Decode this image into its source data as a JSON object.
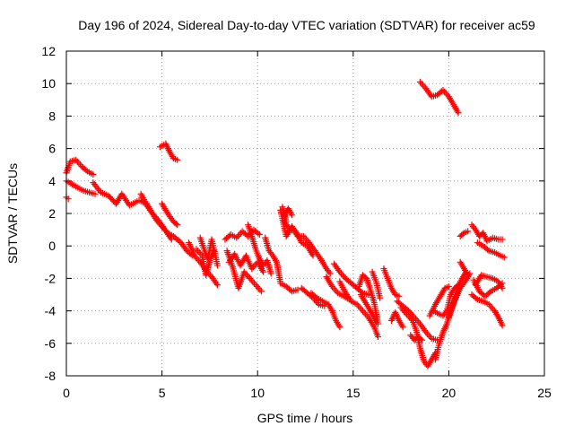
{
  "chart_data": {
    "type": "scatter",
    "title": "Day 196 of 2024, Sidereal Day-to-day VTEC variation (SDTVAR) for receiver ac59",
    "xlabel": "GPS time / hours",
    "ylabel": "SDTVAR / TECUs",
    "xlim": [
      0,
      25
    ],
    "ylim": [
      -8,
      12
    ],
    "xticks": [
      0,
      5,
      10,
      15,
      20,
      25
    ],
    "yticks": [
      -8,
      -6,
      -4,
      -2,
      0,
      2,
      4,
      6,
      8,
      10,
      12
    ],
    "grid": true,
    "marker": "+",
    "series": [
      {
        "name": "SDTVAR",
        "color": "#ff0000",
        "segments": [
          [
            [
              0.0,
              4.5
            ],
            [
              0.2,
              5.2
            ],
            [
              0.5,
              5.3
            ],
            [
              0.8,
              4.9
            ],
            [
              1.1,
              4.6
            ],
            [
              1.4,
              4.4
            ]
          ],
          [
            [
              0.0,
              4.0
            ],
            [
              0.3,
              3.8
            ],
            [
              0.6,
              3.6
            ],
            [
              0.9,
              3.4
            ],
            [
              1.2,
              3.3
            ],
            [
              1.5,
              3.2
            ]
          ],
          [
            [
              0.0,
              3.0
            ],
            [
              0.1,
              2.9
            ]
          ],
          [
            [
              1.4,
              3.9
            ],
            [
              1.8,
              3.3
            ],
            [
              2.2,
              3.1
            ],
            [
              2.6,
              2.6
            ],
            [
              2.9,
              3.2
            ],
            [
              3.3,
              2.5
            ],
            [
              3.8,
              2.8
            ],
            [
              4.2,
              2.6
            ],
            [
              4.4,
              2.2
            ],
            [
              4.7,
              1.6
            ],
            [
              5.0,
              1.2
            ],
            [
              5.3,
              0.8
            ],
            [
              5.6,
              0.6
            ],
            [
              6.0,
              0.2
            ],
            [
              6.3,
              -0.3
            ],
            [
              6.6,
              -0.6
            ]
          ],
          [
            [
              3.9,
              3.2
            ],
            [
              4.2,
              2.5
            ],
            [
              4.5,
              2.0
            ],
            [
              4.8,
              1.6
            ],
            [
              5.1,
              1.1
            ],
            [
              5.5,
              0.4
            ]
          ],
          [
            [
              5.0,
              2.6
            ],
            [
              5.3,
              2.0
            ],
            [
              5.6,
              1.5
            ],
            [
              5.8,
              1.3
            ]
          ],
          [
            [
              4.9,
              6.1
            ],
            [
              5.2,
              6.3
            ],
            [
              5.4,
              5.8
            ],
            [
              5.6,
              5.4
            ],
            [
              5.8,
              5.3
            ]
          ],
          [
            [
              6.4,
              0.2
            ],
            [
              6.7,
              -0.6
            ],
            [
              7.0,
              -1.0
            ],
            [
              7.3,
              -1.5
            ],
            [
              7.6,
              -1.9
            ],
            [
              7.9,
              -2.4
            ]
          ],
          [
            [
              7.0,
              0.5
            ],
            [
              7.2,
              -0.2
            ],
            [
              7.4,
              -0.8
            ],
            [
              7.6,
              0.4
            ],
            [
              7.8,
              -0.6
            ],
            [
              7.9,
              -1.2
            ]
          ],
          [
            [
              6.8,
              -0.2
            ],
            [
              7.1,
              -0.6
            ],
            [
              7.3,
              -1.8
            ],
            [
              7.5,
              -0.9
            ],
            [
              7.7,
              -0.3
            ]
          ],
          [
            [
              8.3,
              0.4
            ],
            [
              8.6,
              0.7
            ],
            [
              8.9,
              0.5
            ],
            [
              9.2,
              0.9
            ],
            [
              9.5,
              0.6
            ],
            [
              9.8,
              1.0
            ],
            [
              10.1,
              0.7
            ]
          ],
          [
            [
              8.4,
              -0.3
            ],
            [
              8.7,
              -1.3
            ],
            [
              9.0,
              -2.6
            ],
            [
              9.3,
              -1.6
            ],
            [
              9.6,
              -2.0
            ],
            [
              9.9,
              -2.4
            ],
            [
              10.2,
              -2.8
            ]
          ],
          [
            [
              8.5,
              -1.0
            ],
            [
              8.8,
              -0.5
            ],
            [
              9.1,
              -1.2
            ],
            [
              9.4,
              -0.6
            ],
            [
              9.7,
              -1.4
            ],
            [
              10.0,
              -1.0
            ],
            [
              10.3,
              -1.6
            ]
          ],
          [
            [
              9.5,
              1.3
            ],
            [
              9.7,
              0.6
            ],
            [
              9.9,
              -0.2
            ],
            [
              10.1,
              -0.8
            ],
            [
              10.3,
              -1.2
            ],
            [
              10.5,
              -0.9
            ],
            [
              10.7,
              -1.7
            ]
          ],
          [
            [
              10.4,
              0.5
            ],
            [
              10.6,
              -0.3
            ],
            [
              10.8,
              -0.6
            ],
            [
              11.0,
              -1.0
            ],
            [
              11.2,
              -2.3
            ],
            [
              11.5,
              -2.5
            ],
            [
              11.8,
              -2.8
            ],
            [
              12.1,
              -2.7
            ]
          ],
          [
            [
              11.2,
              2.2
            ],
            [
              11.5,
              0.6
            ],
            [
              11.8,
              1.2
            ],
            [
              12.1,
              0.6
            ],
            [
              12.4,
              0.6
            ],
            [
              12.7,
              0.2
            ],
            [
              13.0,
              -0.3
            ],
            [
              13.3,
              -0.8
            ],
            [
              13.6,
              -1.4
            ],
            [
              13.8,
              -1.7
            ]
          ],
          [
            [
              11.4,
              1.5
            ],
            [
              11.7,
              1.0
            ],
            [
              12.0,
              0.9
            ],
            [
              12.3,
              0.2
            ],
            [
              12.6,
              0.0
            ],
            [
              12.9,
              -0.6
            ]
          ],
          [
            [
              11.4,
              1.8
            ],
            [
              11.6,
              2.3
            ],
            [
              11.8,
              1.9
            ]
          ],
          [
            [
              11.3,
              2.4
            ],
            [
              11.5,
              1.5
            ]
          ],
          [
            [
              12.3,
              -2.6
            ],
            [
              12.6,
              -2.9
            ],
            [
              12.9,
              -3.2
            ],
            [
              13.2,
              -3.6
            ],
            [
              13.5,
              -3.7
            ]
          ],
          [
            [
              12.8,
              -2.9
            ],
            [
              13.1,
              -3.2
            ],
            [
              13.4,
              -3.4
            ],
            [
              13.7,
              -3.6
            ],
            [
              13.9,
              -4.0
            ],
            [
              14.1,
              -4.6
            ],
            [
              14.3,
              -5.0
            ]
          ],
          [
            [
              13.6,
              -1.9
            ],
            [
              13.9,
              -2.5
            ],
            [
              14.2,
              -2.9
            ],
            [
              14.5,
              -3.1
            ],
            [
              14.8,
              -3.3
            ]
          ],
          [
            [
              14.0,
              -1.1
            ],
            [
              14.3,
              -1.6
            ],
            [
              14.6,
              -2.0
            ],
            [
              14.9,
              -2.3
            ],
            [
              15.2,
              -2.6
            ],
            [
              15.5,
              -2.9
            ],
            [
              15.8,
              -3.0
            ]
          ],
          [
            [
              14.3,
              -2.2
            ],
            [
              14.6,
              -2.9
            ],
            [
              14.9,
              -3.4
            ],
            [
              15.2,
              -3.6
            ],
            [
              15.5,
              -4.0
            ],
            [
              15.8,
              -4.4
            ],
            [
              16.1,
              -5.0
            ],
            [
              16.3,
              -5.6
            ]
          ],
          [
            [
              15.3,
              -2.5
            ],
            [
              15.5,
              -1.8
            ],
            [
              15.7,
              -2.0
            ],
            [
              15.9,
              -2.7
            ],
            [
              16.1,
              -3.5
            ],
            [
              16.3,
              -4.8
            ]
          ],
          [
            [
              15.4,
              -3.0
            ],
            [
              15.7,
              -3.6
            ],
            [
              16.0,
              -4.2
            ],
            [
              16.2,
              -4.7
            ]
          ],
          [
            [
              16.6,
              -1.4
            ],
            [
              16.8,
              -2.0
            ],
            [
              17.0,
              -2.6
            ],
            [
              17.2,
              -3.0
            ],
            [
              17.4,
              -3.1
            ]
          ],
          [
            [
              16.0,
              -1.6
            ],
            [
              16.2,
              -2.2
            ],
            [
              16.4,
              -3.2
            ]
          ],
          [
            [
              17.0,
              -4.6
            ],
            [
              17.2,
              -4.1
            ],
            [
              17.4,
              -4.6
            ],
            [
              17.6,
              -5.0
            ]
          ],
          [
            [
              17.3,
              -3.4
            ],
            [
              17.6,
              -3.7
            ],
            [
              17.9,
              -4.0
            ],
            [
              18.2,
              -4.4
            ],
            [
              18.5,
              -4.8
            ],
            [
              18.8,
              -5.3
            ],
            [
              19.1,
              -5.7
            ],
            [
              19.4,
              -5.8
            ]
          ],
          [
            [
              17.5,
              -3.8
            ],
            [
              17.8,
              -4.2
            ],
            [
              18.1,
              -4.6
            ],
            [
              18.3,
              -5.2
            ],
            [
              18.5,
              -6.3
            ],
            [
              18.7,
              -7.1
            ],
            [
              18.9,
              -7.4
            ],
            [
              19.1,
              -7.0
            ],
            [
              19.3,
              -6.6
            ]
          ],
          [
            [
              18.0,
              -5.5
            ],
            [
              18.2,
              -5.8
            ],
            [
              18.4,
              -5.6
            ],
            [
              18.6,
              -5.8
            ]
          ],
          [
            [
              18.5,
              10.1
            ],
            [
              18.8,
              9.7
            ],
            [
              19.1,
              9.2
            ],
            [
              19.4,
              9.3
            ],
            [
              19.7,
              9.6
            ],
            [
              20.0,
              9.2
            ],
            [
              20.3,
              8.6
            ],
            [
              20.5,
              8.2
            ]
          ],
          [
            [
              19.0,
              -4.3
            ],
            [
              19.3,
              -3.6
            ],
            [
              19.6,
              -3.0
            ],
            [
              19.8,
              -2.6
            ],
            [
              20.0,
              -2.5
            ]
          ],
          [
            [
              19.2,
              -4.0
            ],
            [
              19.5,
              -4.2
            ],
            [
              19.7,
              -4.3
            ],
            [
              19.9,
              -4.0
            ],
            [
              20.1,
              -3.0
            ],
            [
              20.3,
              -2.6
            ],
            [
              20.5,
              -2.4
            ]
          ],
          [
            [
              19.3,
              -7.0
            ],
            [
              19.5,
              -6.0
            ],
            [
              19.7,
              -5.3
            ],
            [
              19.9,
              -4.8
            ],
            [
              20.1,
              -4.0
            ],
            [
              20.4,
              -3.0
            ],
            [
              20.6,
              -2.2
            ],
            [
              20.9,
              -1.6
            ]
          ],
          [
            [
              20.0,
              -4.4
            ],
            [
              20.3,
              -3.4
            ],
            [
              20.6,
              -2.6
            ],
            [
              20.9,
              -2.1
            ],
            [
              21.1,
              -1.7
            ]
          ],
          [
            [
              20.6,
              -1.0
            ],
            [
              20.8,
              -1.4
            ],
            [
              21.0,
              -1.8
            ]
          ],
          [
            [
              20.6,
              0.6
            ],
            [
              20.8,
              0.8
            ],
            [
              21.0,
              0.9
            ]
          ],
          [
            [
              21.2,
              1.3
            ],
            [
              21.4,
              1.0
            ],
            [
              21.6,
              0.6
            ],
            [
              21.8,
              0.8
            ],
            [
              22.0,
              0.3
            ],
            [
              22.3,
              0.5
            ],
            [
              22.6,
              0.4
            ],
            [
              22.8,
              0.4
            ]
          ],
          [
            [
              21.5,
              0.2
            ],
            [
              21.8,
              0.0
            ],
            [
              22.1,
              -0.3
            ],
            [
              22.4,
              -0.4
            ],
            [
              22.7,
              -0.6
            ],
            [
              22.9,
              -0.7
            ]
          ],
          [
            [
              21.2,
              -3.0
            ],
            [
              21.5,
              -3.3
            ],
            [
              21.8,
              -3.4
            ],
            [
              22.1,
              -3.6
            ],
            [
              22.4,
              -4.0
            ],
            [
              22.6,
              -4.4
            ],
            [
              22.8,
              -4.9
            ]
          ],
          [
            [
              21.4,
              -2.4
            ],
            [
              21.7,
              -1.8
            ],
            [
              22.0,
              -1.9
            ],
            [
              22.3,
              -2.0
            ],
            [
              22.6,
              -2.2
            ],
            [
              22.8,
              -2.6
            ]
          ],
          [
            [
              21.3,
              -2.1
            ],
            [
              21.6,
              -2.8
            ],
            [
              21.9,
              -3.1
            ],
            [
              22.2,
              -2.8
            ],
            [
              22.5,
              -2.6
            ],
            [
              22.8,
              -2.3
            ]
          ]
        ]
      }
    ]
  }
}
